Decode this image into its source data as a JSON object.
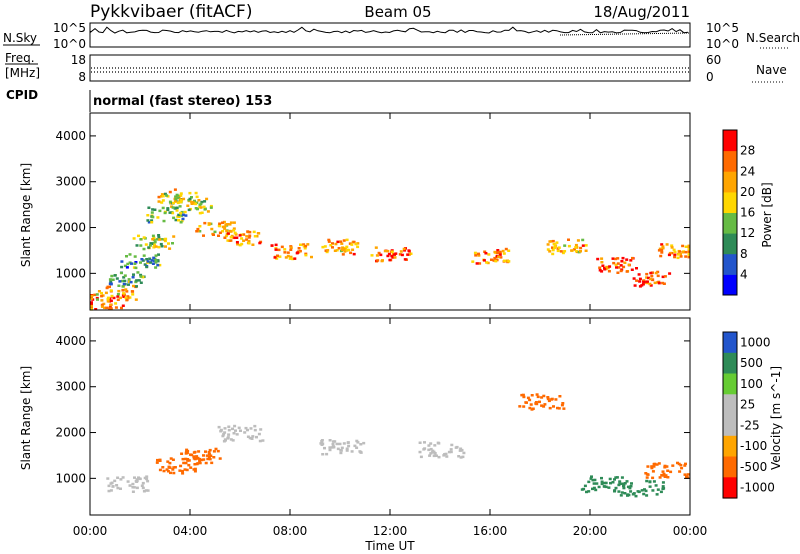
{
  "header": {
    "radar": "Pykkvibaer (fitACF)",
    "beam": "Beam 05",
    "date": "18/Aug/2011"
  },
  "noise_panel": {
    "left_label": "N.Sky",
    "right_label": "N.Search",
    "ytick_top": "10^5",
    "ytick_bottom": "10^0"
  },
  "freq_panel": {
    "left_label_line1": "Freq.",
    "left_label_line2": "[MHz]",
    "right_label": "Nave",
    "left_ticks": [
      "18",
      "8"
    ],
    "right_ticks": [
      "60",
      "0"
    ]
  },
  "cpid": {
    "label": "CPID",
    "value": "normal (fast stereo) 153"
  },
  "colors": {
    "power_scale": [
      "#0000ff",
      "#2255cc",
      "#2e8b57",
      "#66bb44",
      "#ffd700",
      "#ffa500",
      "#ff6a00",
      "#ff0000"
    ],
    "velocity_scale": [
      "#ff0000",
      "#ff6a00",
      "#ffa500",
      "#bdbdbd",
      "#bdbdbd",
      "#66cc33",
      "#2e8b57",
      "#2255cc"
    ],
    "ground_scatter": "#bdbdbd"
  },
  "chart_data": [
    {
      "type": "heatmap",
      "panel": "power",
      "ylabel": "Slant Range [km]",
      "yticks": [
        "1000",
        "2000",
        "3000",
        "4000"
      ],
      "ylim": [
        200,
        4500
      ],
      "xlim": [
        "00:00",
        "24:00"
      ],
      "colorbar": {
        "label": "Power [dB]",
        "ticks": [
          "4",
          "8",
          "12",
          "16",
          "20",
          "24",
          "28"
        ],
        "range": [
          0,
          32
        ]
      },
      "series": [
        {
          "name": "Power [dB]",
          "points": [
            {
              "t": 0.5,
              "range": 400,
              "value": 26
            },
            {
              "t": 1.0,
              "range": 600,
              "value": 22
            },
            {
              "t": 1.5,
              "range": 900,
              "value": 12
            },
            {
              "t": 2.0,
              "range": 1300,
              "value": 10
            },
            {
              "t": 2.5,
              "range": 1700,
              "value": 16
            },
            {
              "t": 3.0,
              "range": 2300,
              "value": 14
            },
            {
              "t": 3.5,
              "range": 2700,
              "value": 18
            },
            {
              "t": 4.0,
              "range": 2500,
              "value": 16
            },
            {
              "t": 5.0,
              "range": 2000,
              "value": 20
            },
            {
              "t": 6.0,
              "range": 1800,
              "value": 24
            },
            {
              "t": 8.0,
              "range": 1500,
              "value": 24
            },
            {
              "t": 10.0,
              "range": 1600,
              "value": 22
            },
            {
              "t": 12.0,
              "range": 1450,
              "value": 26
            },
            {
              "t": 16.0,
              "range": 1400,
              "value": 24
            },
            {
              "t": 19.0,
              "range": 1600,
              "value": 22
            },
            {
              "t": 21.0,
              "range": 1200,
              "value": 26
            },
            {
              "t": 22.5,
              "range": 900,
              "value": 28
            },
            {
              "t": 23.5,
              "range": 1500,
              "value": 22
            }
          ]
        }
      ]
    },
    {
      "type": "heatmap",
      "panel": "velocity",
      "ylabel": "Slant Range [km]",
      "yticks": [
        "1000",
        "2000",
        "3000",
        "4000"
      ],
      "ylim": [
        200,
        4500
      ],
      "xlabel": "Time UT",
      "xticks": [
        "00:00",
        "04:00",
        "08:00",
        "12:00",
        "16:00",
        "20:00",
        "00:00"
      ],
      "xlim": [
        "00:00",
        "24:00"
      ],
      "colorbar": {
        "label": "Velocity [m s^-1]",
        "ticks": [
          "1000",
          "500",
          "100",
          "25",
          "-25",
          "-100",
          "-500",
          "-1000"
        ]
      },
      "series": [
        {
          "name": "Velocity [m s^-1]",
          "points": [
            {
              "t": 1.5,
              "range": 900,
              "value": 0
            },
            {
              "t": 3.5,
              "range": 1300,
              "value": -300
            },
            {
              "t": 4.5,
              "range": 1500,
              "value": -300
            },
            {
              "t": 6.0,
              "range": 2000,
              "value": 0
            },
            {
              "t": 10.0,
              "range": 1700,
              "value": 0
            },
            {
              "t": 14.0,
              "range": 1650,
              "value": 0
            },
            {
              "t": 18.0,
              "range": 2700,
              "value": -300
            },
            {
              "t": 20.5,
              "range": 900,
              "value": 300
            },
            {
              "t": 22.0,
              "range": 800,
              "value": 300
            },
            {
              "t": 23.0,
              "range": 1200,
              "value": -300
            }
          ]
        }
      ]
    }
  ]
}
